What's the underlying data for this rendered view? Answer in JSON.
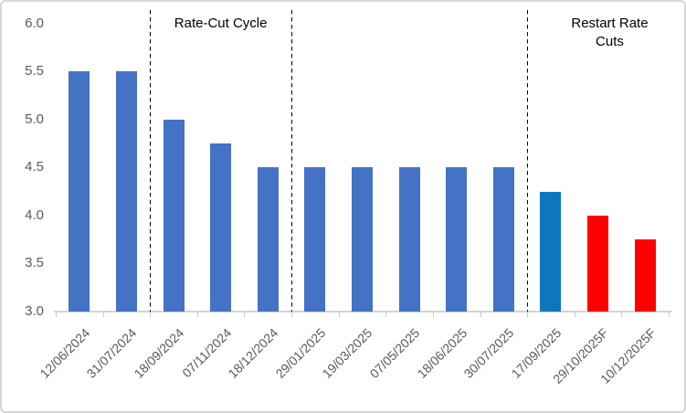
{
  "chart_data": {
    "type": "bar",
    "title": "",
    "xlabel": "",
    "ylabel": "",
    "categories": [
      "12/06/2024",
      "31/07/2024",
      "18/09/2024",
      "07/11/2024",
      "18/12/2024",
      "29/01/2025",
      "19/03/2025",
      "07/05/2025",
      "18/06/2025",
      "30/07/2025",
      "17/09/2025",
      "29/10/2025F",
      "10/12/2025F"
    ],
    "values": [
      5.5,
      5.5,
      5.0,
      4.75,
      4.5,
      4.5,
      4.5,
      4.5,
      4.5,
      4.5,
      4.25,
      4.0,
      3.75
    ],
    "bar_colors": [
      "#4472C4",
      "#4472C4",
      "#4472C4",
      "#4472C4",
      "#4472C4",
      "#4472C4",
      "#4472C4",
      "#4472C4",
      "#4472C4",
      "#4472C4",
      "#0C77BE",
      "#FF0000",
      "#FF0000"
    ],
    "ylim": [
      3.0,
      6.0
    ],
    "yticks": [
      3.0,
      3.5,
      4.0,
      4.5,
      5.0,
      5.5,
      6.0
    ],
    "ytick_labels": [
      "3.0",
      "3.5",
      "4.0",
      "4.5",
      "5.0",
      "5.5",
      "6.0"
    ],
    "grid": false,
    "legend": "none",
    "dividers_at_category_boundaries": [
      2,
      5,
      10
    ],
    "annotations": [
      {
        "line1": "Rate-Cut Cycle",
        "line2": "",
        "x_category_position": 3.5
      },
      {
        "line1": "Restart Rate",
        "line2": "Cuts",
        "x_category_position": 11.75
      }
    ]
  },
  "colors": {
    "bar_default": "#4472C4",
    "bar_highlight": "#0C77BE",
    "bar_forecast": "#FF0000",
    "axis_line": "#D4D4D4",
    "axis_tick": "#C9C9C9",
    "axis_text": "#595959",
    "annotation_text": "#000000",
    "divider_line": "#000000",
    "background": "#FFFFFF",
    "chart_border": "#D6D6D6"
  }
}
